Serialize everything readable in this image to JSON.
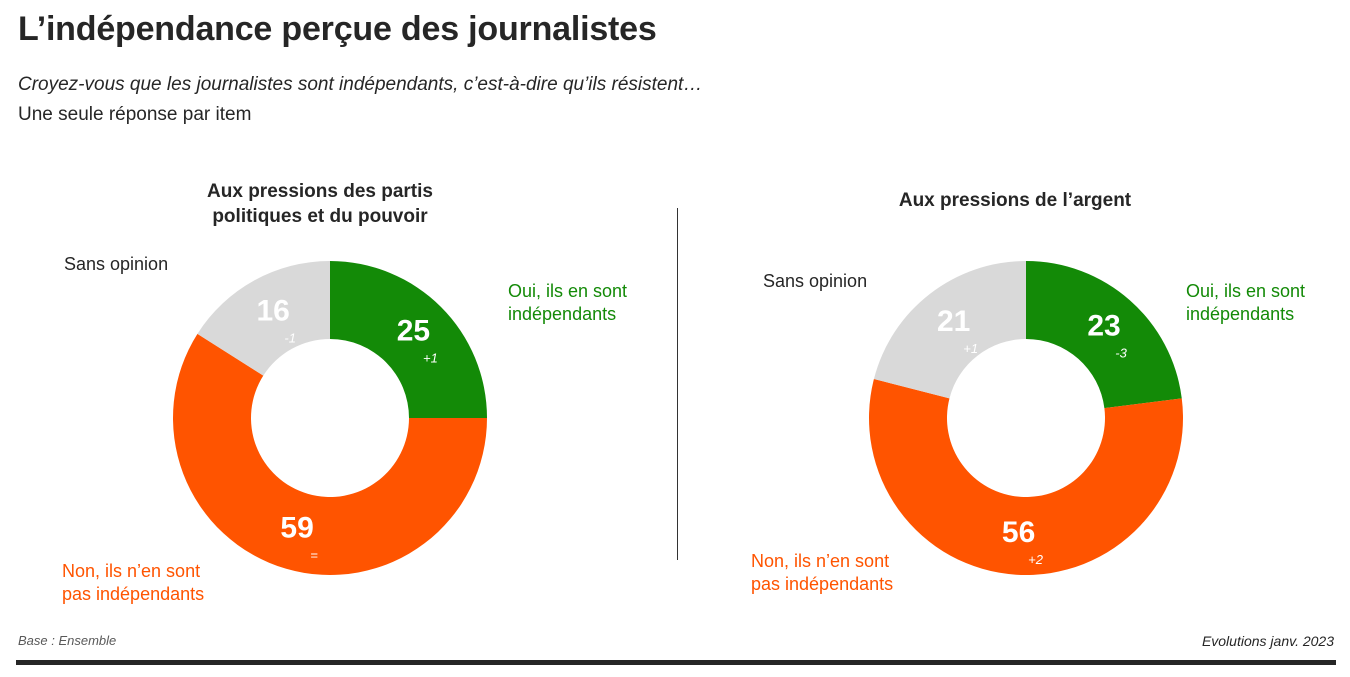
{
  "header": {
    "title": "L’indépendance perçue des journalistes",
    "subtitle": "Croyez-vous que les journalistes sont indépendants, c’est-à-dire qu’ils résistent…",
    "instruction": "Une seule réponse par item"
  },
  "legend_labels": {
    "yes": [
      "Oui, ils en sont",
      "indépendants"
    ],
    "no": [
      "Non, ils n’en sont",
      "pas indépendants"
    ],
    "none": "Sans opinion"
  },
  "colors": {
    "yes": "#138a07",
    "no": "#ff5400",
    "none": "#d9d9d9"
  },
  "chart_data": [
    {
      "type": "pie",
      "title": "Aux pressions des partis politiques et du pouvoir",
      "title_lines": [
        "Aux pressions des partis",
        "politiques et du pouvoir"
      ],
      "categories": [
        "Oui, ils en sont indépendants",
        "Non, ils n’en sont pas indépendants",
        "Sans opinion"
      ],
      "values": [
        25,
        59,
        16
      ],
      "evolutions": [
        "+1",
        "=",
        "-1"
      ]
    },
    {
      "type": "pie",
      "title": "Aux pressions de l’argent",
      "title_lines": [
        "Aux pressions de l’argent"
      ],
      "categories": [
        "Oui, ils en sont indépendants",
        "Non, ils n’en sont pas indépendants",
        "Sans opinion"
      ],
      "values": [
        23,
        56,
        21
      ],
      "evolutions": [
        "-3",
        "+2",
        "+1"
      ]
    }
  ],
  "footer": {
    "base": "Base : Ensemble",
    "evolutions_note": "Evolutions janv. 2023"
  }
}
